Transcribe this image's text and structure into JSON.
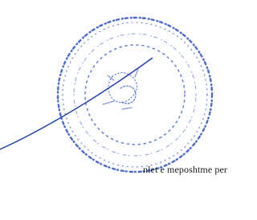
{
  "document": {
    "text_line": "nlet e meposhtme per"
  }
}
